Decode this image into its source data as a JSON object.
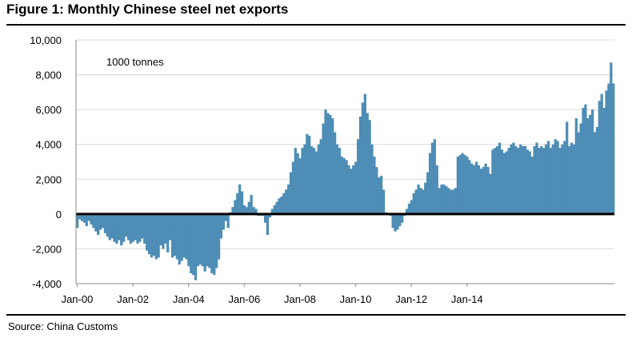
{
  "title": "Figure 1: Monthly Chinese steel net exports",
  "source": "Source: China Customs",
  "chart_data": {
    "type": "bar",
    "title": "Figure 1: Monthly Chinese steel net exports",
    "unit_label": "1000 tonnes",
    "xlabel": "",
    "ylabel": "",
    "ylim": [
      -4000,
      10000
    ],
    "yticks": [
      -4000,
      -2000,
      0,
      2000,
      4000,
      6000,
      8000,
      10000
    ],
    "ytick_labels": [
      "-4,000",
      "-2,000",
      "0",
      "2,000",
      "4,000",
      "6,000",
      "8,000",
      "10,000"
    ],
    "xtick_labels": [
      "Jan-00",
      "Jan-02",
      "Jan-04",
      "Jan-06",
      "Jan-08",
      "Jan-10",
      "Jan-12",
      "Jan-14"
    ],
    "xtick_index": [
      0,
      24,
      48,
      72,
      96,
      120,
      144,
      168
    ],
    "start": "Jan-00",
    "color": "#4e8db5",
    "values": [
      -800,
      -300,
      -400,
      -500,
      -700,
      -400,
      -600,
      -800,
      -1000,
      -1200,
      -900,
      -800,
      -1100,
      -1300,
      -1500,
      -1400,
      -1600,
      -1700,
      -1500,
      -1800,
      -1600,
      -1300,
      -1500,
      -1700,
      -1600,
      -1500,
      -1700,
      -1600,
      -1400,
      -1700,
      -2100,
      -2300,
      -2500,
      -2400,
      -2600,
      -2500,
      -1800,
      -2000,
      -1700,
      -2200,
      -1500,
      -2500,
      -2400,
      -2600,
      -2900,
      -2700,
      -2500,
      -2600,
      -3000,
      -3400,
      -3500,
      -3800,
      -3000,
      -2900,
      -3000,
      -3300,
      -3000,
      -3100,
      -3400,
      -3500,
      -3100,
      -2600,
      -1400,
      -900,
      -400,
      -800,
      100,
      400,
      800,
      1200,
      1700,
      1300,
      500,
      400,
      700,
      1100,
      400,
      300,
      -100,
      -100,
      -100,
      -500,
      -1200,
      -200,
      300,
      500,
      700,
      900,
      1000,
      1200,
      1400,
      1700,
      2400,
      3000,
      3800,
      3500,
      3200,
      3800,
      4000,
      4600,
      4500,
      3900,
      3800,
      3600,
      4000,
      4300,
      5200,
      6000,
      5800,
      5700,
      5500,
      4700,
      4000,
      3800,
      3300,
      3200,
      3100,
      2800,
      2600,
      2800,
      3000,
      4300,
      5600,
      6400,
      6900,
      5800,
      5400,
      4000,
      3300,
      2700,
      2100,
      2200,
      1400,
      100,
      0,
      -100,
      -800,
      -1000,
      -900,
      -700,
      -500,
      -100,
      300,
      600,
      800,
      1200,
      1400,
      1700,
      1500,
      1400,
      1800,
      2400,
      3500,
      4100,
      4300,
      2800,
      1500,
      1700,
      1700,
      1600,
      1500,
      1400,
      1400,
      1500,
      3300,
      3400,
      3500,
      3400,
      3300,
      3100,
      2900,
      2800,
      3000,
      2800,
      2600,
      2700,
      2900,
      2700,
      2300,
      3700,
      3800,
      3900,
      4100,
      3700,
      3500,
      3600,
      3800,
      4000,
      4100,
      3900,
      3800,
      4000,
      3900,
      3900,
      3700,
      3600,
      3300,
      3900,
      4100,
      3800,
      3900,
      3800,
      4000,
      4200,
      3800,
      4000,
      4300,
      4200,
      3800,
      4000,
      4200,
      5300,
      3900,
      4100,
      4000,
      5500,
      4700,
      5200,
      6100,
      6300,
      5500,
      5700,
      6000,
      4700,
      5000,
      6500,
      6900,
      6100,
      7100,
      7500,
      8700,
      7500
    ]
  }
}
